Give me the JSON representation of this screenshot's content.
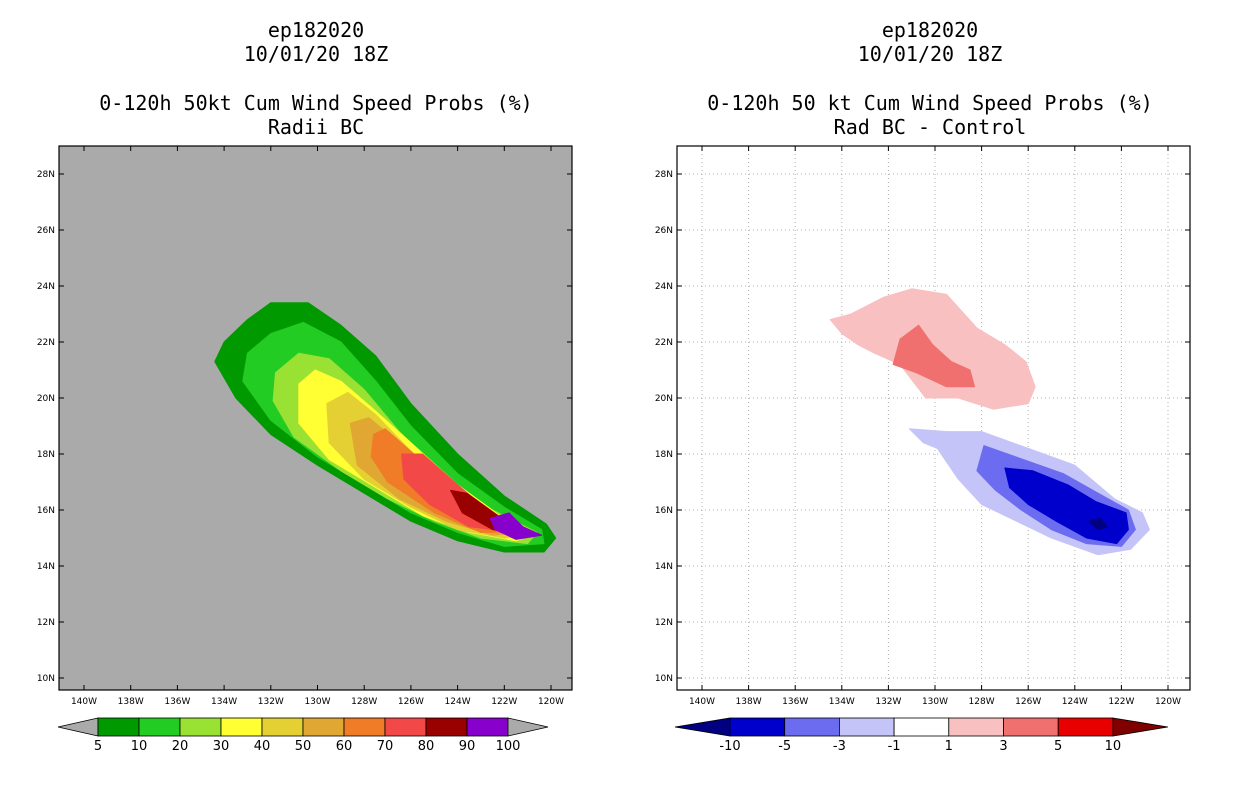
{
  "left": {
    "title_lines": [
      "ep182020",
      "10/01/20 18Z"
    ],
    "subtitle_lines": [
      "0-120h 50kt Cum Wind Speed Probs (%)",
      "Radii BC"
    ],
    "background_color": "#aaaaaa",
    "colorbar": {
      "labels": [
        "5",
        "10",
        "20",
        "30",
        "40",
        "50",
        "60",
        "70",
        "80",
        "90",
        "100"
      ],
      "colors": [
        "#009900",
        "#22cc22",
        "#99e133",
        "#ffff33",
        "#e5d033",
        "#e0a832",
        "#f07c28",
        "#f24848",
        "#990000",
        "#8800cc"
      ]
    }
  },
  "right": {
    "title_lines": [
      "ep182020",
      "10/01/20 18Z"
    ],
    "subtitle_lines": [
      "0-120h 50 kt Cum Wind Speed Probs (%)",
      "Rad BC - Control"
    ],
    "background_color": "#ffffff",
    "colorbar": {
      "labels": [
        "-10",
        "-5",
        "-3",
        "-1",
        "1",
        "3",
        "5",
        "10"
      ],
      "colors": [
        "#0000cc",
        "#6c6cf0",
        "#c4c4f8",
        "#ffffff",
        "#f8c0c0",
        "#f07070",
        "#e80000"
      ],
      "low_end_color": "#000080",
      "high_end_color": "#800000"
    }
  },
  "chart_data": [
    {
      "type": "heatmap",
      "title": "0-120h 50kt Cum Wind Speed Probs (%)",
      "subtitle": "Radii BC",
      "storm": "ep182020",
      "time": "10/01/20 18Z",
      "x_ticks": [
        "140W",
        "138W",
        "136W",
        "134W",
        "132W",
        "130W",
        "128W",
        "126W",
        "124W",
        "122W",
        "120W"
      ],
      "y_ticks": [
        "10N",
        "12N",
        "14N",
        "16N",
        "18N",
        "20N",
        "22N",
        "24N",
        "26N",
        "28N"
      ],
      "xlim_lon": [
        -140.8,
        -118.8
      ],
      "ylim_lat": [
        9.5,
        29.5
      ],
      "contour_levels": [
        5,
        10,
        20,
        30,
        40,
        50,
        60,
        70,
        80,
        90,
        100
      ],
      "contours": [
        {
          "level": 5,
          "color": "#009900",
          "points": [
            [
              -134,
              22.0
            ],
            [
              -133,
              22.8
            ],
            [
              -132,
              23.4
            ],
            [
              -130.4,
              23.4
            ],
            [
              -129,
              22.6
            ],
            [
              -127.5,
              21.5
            ],
            [
              -126,
              19.8
            ],
            [
              -124,
              18.0
            ],
            [
              -122,
              16.5
            ],
            [
              -120.2,
              15.5
            ],
            [
              -119.8,
              15.0
            ],
            [
              -120.3,
              14.5
            ],
            [
              -122,
              14.5
            ],
            [
              -124,
              14.9
            ],
            [
              -126,
              15.6
            ],
            [
              -128,
              16.6
            ],
            [
              -130,
              17.6
            ],
            [
              -132,
              18.7
            ],
            [
              -133.5,
              20.0
            ],
            [
              -134.4,
              21.3
            ]
          ]
        },
        {
          "level": 10,
          "color": "#22cc22",
          "points": [
            [
              -133,
              21.6
            ],
            [
              -132,
              22.3
            ],
            [
              -130.6,
              22.7
            ],
            [
              -129,
              22.0
            ],
            [
              -127.5,
              20.6
            ],
            [
              -126,
              19.0
            ],
            [
              -124,
              17.3
            ],
            [
              -122,
              16.1
            ],
            [
              -120.4,
              15.3
            ],
            [
              -120.3,
              14.8
            ],
            [
              -122,
              14.7
            ],
            [
              -124,
              15.2
            ],
            [
              -126,
              15.9
            ],
            [
              -128,
              16.9
            ],
            [
              -130,
              17.9
            ],
            [
              -132,
              19.2
            ],
            [
              -133.2,
              20.6
            ]
          ]
        },
        {
          "level": 20,
          "color": "#99e133",
          "points": [
            [
              -131.8,
              20.9
            ],
            [
              -130.8,
              21.6
            ],
            [
              -129.5,
              21.4
            ],
            [
              -128,
              20.3
            ],
            [
              -126.5,
              18.8
            ],
            [
              -124.5,
              17.2
            ],
            [
              -122.5,
              16.0
            ],
            [
              -120.6,
              15.2
            ],
            [
              -121,
              14.8
            ],
            [
              -123,
              15.0
            ],
            [
              -125,
              15.6
            ],
            [
              -127,
              16.4
            ],
            [
              -129,
              17.4
            ],
            [
              -131,
              18.6
            ],
            [
              -131.9,
              19.9
            ]
          ]
        },
        {
          "level": 30,
          "color": "#ffff33",
          "points": [
            [
              -130.8,
              20.5
            ],
            [
              -130.1,
              21.0
            ],
            [
              -129,
              20.6
            ],
            [
              -127.6,
              19.6
            ],
            [
              -126,
              18.4
            ],
            [
              -124,
              16.9
            ],
            [
              -122.2,
              15.8
            ],
            [
              -120.8,
              15.1
            ],
            [
              -121.5,
              14.9
            ],
            [
              -123.5,
              15.2
            ],
            [
              -125.5,
              15.8
            ],
            [
              -127.5,
              16.8
            ],
            [
              -129.5,
              17.8
            ],
            [
              -130.8,
              19.1
            ]
          ]
        },
        {
          "level": 40,
          "color": "#e5d033",
          "points": [
            [
              -129.6,
              19.8
            ],
            [
              -128.7,
              20.2
            ],
            [
              -127.5,
              19.4
            ],
            [
              -126,
              18.1
            ],
            [
              -124.5,
              16.9
            ],
            [
              -122.5,
              15.8
            ],
            [
              -121,
              15.1
            ],
            [
              -122,
              15.0
            ],
            [
              -124,
              15.3
            ],
            [
              -126,
              16.1
            ],
            [
              -128,
              17.1
            ],
            [
              -129.5,
              18.4
            ]
          ]
        },
        {
          "level": 50,
          "color": "#e0a832",
          "points": [
            [
              -128.6,
              19.1
            ],
            [
              -127.8,
              19.3
            ],
            [
              -126.5,
              18.4
            ],
            [
              -125,
              17.3
            ],
            [
              -123.2,
              16.1
            ],
            [
              -121.2,
              15.2
            ],
            [
              -122.5,
              15.1
            ],
            [
              -124.5,
              15.6
            ],
            [
              -126.5,
              16.4
            ],
            [
              -128.3,
              17.6
            ]
          ]
        },
        {
          "level": 60,
          "color": "#f07c28",
          "points": [
            [
              -127.6,
              18.7
            ],
            [
              -127.1,
              18.9
            ],
            [
              -126,
              18.1
            ],
            [
              -124.5,
              17.0
            ],
            [
              -122.8,
              15.9
            ],
            [
              -121.3,
              15.2
            ],
            [
              -123,
              15.2
            ],
            [
              -125,
              15.9
            ],
            [
              -127,
              17.0
            ],
            [
              -127.7,
              17.9
            ]
          ]
        },
        {
          "level": 70,
          "color": "#f24848",
          "points": [
            [
              -126.4,
              18.0
            ],
            [
              -125.5,
              18.0
            ],
            [
              -124,
              16.9
            ],
            [
              -122.6,
              15.9
            ],
            [
              -121.4,
              15.2
            ],
            [
              -123.5,
              15.4
            ],
            [
              -125.2,
              16.2
            ],
            [
              -126.3,
              17.1
            ]
          ]
        },
        {
          "level": 80,
          "color": "#990000",
          "points": [
            [
              -124.3,
              16.7
            ],
            [
              -123.6,
              16.6
            ],
            [
              -122.6,
              16.0
            ],
            [
              -121.6,
              15.4
            ],
            [
              -121.2,
              15.1
            ],
            [
              -122.5,
              15.3
            ],
            [
              -123.8,
              15.9
            ]
          ]
        },
        {
          "level": 90,
          "color": "#8800cc",
          "points": [
            [
              -122.6,
              15.7
            ],
            [
              -121.8,
              15.9
            ],
            [
              -121.2,
              15.4
            ],
            [
              -120.4,
              15.1
            ],
            [
              -121.5,
              14.95
            ],
            [
              -122.4,
              15.3
            ]
          ]
        }
      ]
    },
    {
      "type": "heatmap",
      "title": "0-120h 50 kt Cum Wind Speed Probs (%)",
      "subtitle": "Rad BC - Control",
      "storm": "ep182020",
      "time": "10/01/20 18Z",
      "x_ticks": [
        "140W",
        "138W",
        "136W",
        "134W",
        "132W",
        "130W",
        "128W",
        "126W",
        "124W",
        "122W",
        "120W"
      ],
      "y_ticks": [
        "10N",
        "12N",
        "14N",
        "16N",
        "18N",
        "20N",
        "22N",
        "24N",
        "26N",
        "28N"
      ],
      "xlim_lon": [
        -140.8,
        -119.0
      ],
      "ylim_lat": [
        9.5,
        29.5
      ],
      "grid": true,
      "contour_levels": [
        -10,
        -5,
        -3,
        -1,
        1,
        3,
        5,
        10
      ],
      "contours": [
        {
          "level": 1,
          "color": "#f8c0c0",
          "points": [
            [
              -134.5,
              22.8
            ],
            [
              -133.6,
              23.0
            ],
            [
              -132.2,
              23.6
            ],
            [
              -131,
              23.9
            ],
            [
              -129.5,
              23.7
            ],
            [
              -128.2,
              22.5
            ],
            [
              -127,
              21.9
            ],
            [
              -126.1,
              21.3
            ],
            [
              -125.7,
              20.4
            ],
            [
              -126,
              19.8
            ],
            [
              -127.5,
              19.6
            ],
            [
              -129,
              20.0
            ],
            [
              -130.4,
              20.0
            ],
            [
              -131.5,
              21.2
            ],
            [
              -132.6,
              21.6
            ],
            [
              -133.3,
              21.9
            ],
            [
              -134,
              22.3
            ]
          ]
        },
        {
          "level": 3,
          "color": "#f07070",
          "points": [
            [
              -131.8,
              21.2
            ],
            [
              -131.5,
              22.1
            ],
            [
              -130.7,
              22.6
            ],
            [
              -130.1,
              21.9
            ],
            [
              -129.3,
              21.3
            ],
            [
              -128.5,
              21.0
            ],
            [
              -128.3,
              20.4
            ],
            [
              -129.5,
              20.4
            ],
            [
              -130.8,
              20.9
            ]
          ]
        },
        {
          "level": -1,
          "color": "#c4c4f8",
          "points": [
            [
              -131.1,
              18.9
            ],
            [
              -129.5,
              18.8
            ],
            [
              -128,
              18.8
            ],
            [
              -126,
              18.2
            ],
            [
              -124,
              17.6
            ],
            [
              -122.3,
              16.4
            ],
            [
              -121.1,
              15.9
            ],
            [
              -120.8,
              15.3
            ],
            [
              -121.6,
              14.6
            ],
            [
              -123,
              14.4
            ],
            [
              -125,
              15.0
            ],
            [
              -126.5,
              15.6
            ],
            [
              -128,
              16.2
            ],
            [
              -129,
              17.1
            ],
            [
              -129.9,
              18.2
            ],
            [
              -130.5,
              18.4
            ]
          ]
        },
        {
          "level": -3,
          "color": "#6c6cf0",
          "points": [
            [
              -127.9,
              18.3
            ],
            [
              -126.2,
              17.8
            ],
            [
              -124.5,
              17.3
            ],
            [
              -123,
              16.6
            ],
            [
              -121.7,
              16.0
            ],
            [
              -121.4,
              15.3
            ],
            [
              -122,
              14.7
            ],
            [
              -123.5,
              14.8
            ],
            [
              -125,
              15.3
            ],
            [
              -126.3,
              16.0
            ],
            [
              -127.4,
              16.7
            ],
            [
              -128.2,
              17.4
            ]
          ]
        },
        {
          "level": -5,
          "color": "#0000cc",
          "points": [
            [
              -127,
              17.5
            ],
            [
              -125.8,
              17.4
            ],
            [
              -124.3,
              16.9
            ],
            [
              -123.1,
              16.3
            ],
            [
              -121.8,
              15.9
            ],
            [
              -121.7,
              15.3
            ],
            [
              -122.2,
              14.8
            ],
            [
              -123.5,
              15.0
            ],
            [
              -124.8,
              15.6
            ],
            [
              -126,
              16.2
            ],
            [
              -126.8,
              16.8
            ]
          ]
        },
        {
          "level": -10,
          "color": "#000080",
          "points": [
            [
              -123.4,
              15.6
            ],
            [
              -122.9,
              15.7
            ],
            [
              -122.6,
              15.4
            ],
            [
              -123.0,
              15.3
            ]
          ]
        }
      ]
    }
  ]
}
